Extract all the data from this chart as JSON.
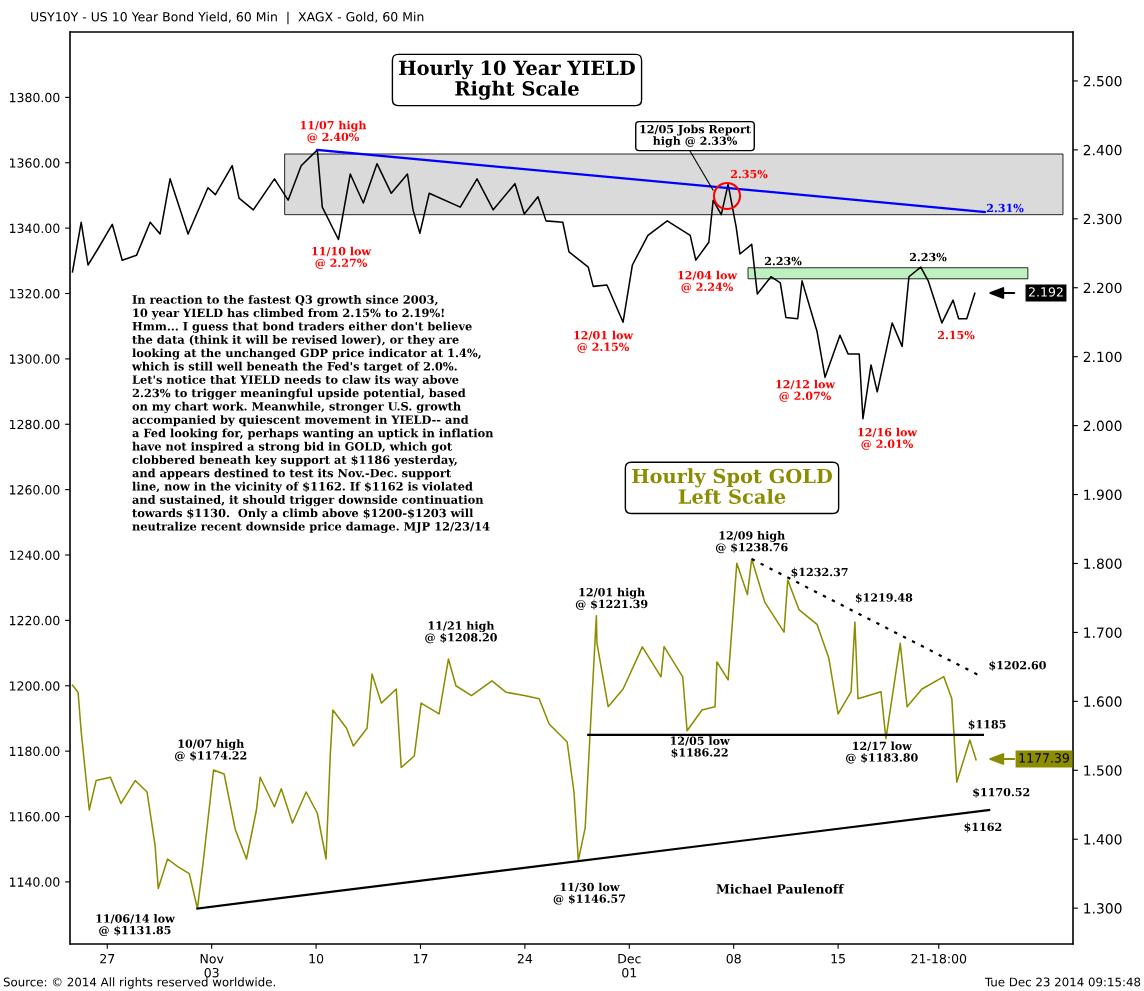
{
  "chart_data": {
    "type": "line",
    "title": "USY10Y - US 10 Year Bond Yield, 60 Min  |  XAGX - Gold, 60 Min",
    "xlim": [
      "2014-10-24T12:00",
      "2014-12-30T18:00"
    ],
    "xticks": [
      {
        "value": "2014-10-27",
        "label": "27"
      },
      {
        "value": "2014-11-03",
        "label": "Nov\n03"
      },
      {
        "value": "2014-11-10",
        "label": "10"
      },
      {
        "value": "2014-11-17",
        "label": "17"
      },
      {
        "value": "2014-11-24",
        "label": "24"
      },
      {
        "value": "2014-12-01",
        "label": "Dec\n01"
      },
      {
        "value": "2014-12-08",
        "label": "08"
      },
      {
        "value": "2014-12-15",
        "label": "15"
      },
      {
        "value": "2014-12-21T18:00",
        "label": "21-18:00"
      }
    ],
    "ylim": [
      1121,
      1400
    ],
    "yticks": [
      {
        "value": 1140,
        "label": "1140.00"
      },
      {
        "value": 1160,
        "label": "1160.00"
      },
      {
        "value": 1180,
        "label": "1180.00"
      },
      {
        "value": 1200,
        "label": "1200.00"
      },
      {
        "value": 1220,
        "label": "1220.00"
      },
      {
        "value": 1240,
        "label": "1240.00"
      },
      {
        "value": 1260,
        "label": "1260.00"
      },
      {
        "value": 1280,
        "label": "1280.00"
      },
      {
        "value": 1300,
        "label": "1300.00"
      },
      {
        "value": 1320,
        "label": "1320.00"
      },
      {
        "value": 1340,
        "label": "1340.00"
      },
      {
        "value": 1360,
        "label": "1360.00"
      },
      {
        "value": 1380,
        "label": "1380.00"
      }
    ],
    "y2lim": [
      1.248,
      2.571
    ],
    "y2ticks": [
      {
        "value": 1.3,
        "label": "1.300"
      },
      {
        "value": 1.4,
        "label": "1.400"
      },
      {
        "value": 1.5,
        "label": "1.500"
      },
      {
        "value": 1.6,
        "label": "1.600"
      },
      {
        "value": 1.7,
        "label": "1.700"
      },
      {
        "value": 1.8,
        "label": "1.800"
      },
      {
        "value": 1.9,
        "label": "1.900"
      },
      {
        "value": 2.0,
        "label": "2.000"
      },
      {
        "value": 2.1,
        "label": "2.100"
      },
      {
        "value": 2.2,
        "label": "2.200"
      },
      {
        "value": 2.3,
        "label": "2.300"
      },
      {
        "value": 2.4,
        "label": "2.400"
      },
      {
        "value": 2.5,
        "label": "2.500"
      }
    ],
    "bands": [
      {
        "axis": "y2",
        "from": 2.306,
        "to": 2.394,
        "color": "#dadada"
      },
      {
        "axis": "y2",
        "from": 2.213,
        "to": 2.229,
        "color": "#bff0bf"
      }
    ],
    "series": [
      {
        "axis": "y2",
        "color": "#000000",
        "x": [
          "2014-10-24T16:00",
          "2014-10-25T06:00",
          "2014-10-25T17:00",
          "2014-10-26T10:00",
          "2014-10-27T08:00",
          "2014-10-28T00:00",
          "2014-10-28T23:00",
          "2014-10-29T21:00",
          "2014-10-30T13:00",
          "2014-10-31T05:00",
          "2014-11-01T10:00",
          "2014-11-02T18:00",
          "2014-11-03T06:00",
          "2014-11-04T09:00",
          "2014-11-04T20:00",
          "2014-11-05T19:00",
          "2014-11-07T05:00",
          "2014-11-08T03:00",
          "2014-11-09T00:00",
          "2014-11-10T02:00",
          "2014-11-10T10:00",
          "2014-11-11T12:00",
          "2014-11-12T07:00",
          "2014-11-13T04:00",
          "2014-11-14T02:00",
          "2014-11-15T01:00",
          "2014-11-16T03:00",
          "2014-11-16T12:00",
          "2014-11-16T23:00",
          "2014-11-17T14:00",
          "2014-11-19T16:00",
          "2014-11-20T19:00",
          "2014-11-21T21:00",
          "2014-11-23T08:00",
          "2014-11-23T23:00",
          "2014-11-24T21:00",
          "2014-11-25T10:00",
          "2014-11-26T13:00",
          "2014-11-26T23:00",
          "2014-11-28T06:00",
          "2014-11-28T14:00",
          "2014-11-29T12:00",
          "2014-11-30T14:00",
          "2014-12-01T05:00",
          "2014-12-02T06:00",
          "2014-12-03T13:00",
          "2014-12-05T02:00",
          "2014-12-05T11:00",
          "2014-12-06T08:00",
          "2014-12-06T15:00",
          "2014-12-07T04:00",
          "2014-12-07T15:00",
          "2014-12-08T04:00",
          "2014-12-08T10:00",
          "2014-12-09T05:00",
          "2014-12-09T14:00",
          "2014-12-10T12:00",
          "2014-12-11T03:00",
          "2014-12-11T12:00",
          "2014-12-12T07:00",
          "2014-12-12T14:00",
          "2014-12-13T14:00",
          "2014-12-14T03:00",
          "2014-12-15T03:00",
          "2014-12-15T16:00",
          "2014-12-16T10:00",
          "2014-12-16T16:00",
          "2014-12-17T05:00",
          "2014-12-17T15:00",
          "2014-12-18T15:00",
          "2014-12-19T07:00",
          "2014-12-19T18:00",
          "2014-12-20T13:00",
          "2014-12-21T01:00",
          "2014-12-21T23:00",
          "2014-12-22T17:00",
          "2014-12-23T02:00",
          "2014-12-23T15:00",
          "2014-12-24T04:00"
        ],
        "values": [
          2.223,
          2.295,
          2.233,
          2.258,
          2.292,
          2.24,
          2.247,
          2.295,
          2.278,
          2.358,
          2.278,
          2.345,
          2.335,
          2.377,
          2.33,
          2.313,
          2.358,
          2.327,
          2.377,
          2.4,
          2.317,
          2.27,
          2.365,
          2.323,
          2.38,
          2.337,
          2.365,
          2.313,
          2.279,
          2.337,
          2.317,
          2.358,
          2.313,
          2.351,
          2.307,
          2.332,
          2.297,
          2.295,
          2.252,
          2.23,
          2.202,
          2.204,
          2.15,
          2.233,
          2.276,
          2.297,
          2.276,
          2.24,
          2.266,
          2.327,
          2.306,
          2.35,
          2.288,
          2.249,
          2.263,
          2.191,
          2.216,
          2.207,
          2.157,
          2.155,
          2.21,
          2.137,
          2.07,
          2.131,
          2.104,
          2.104,
          2.01,
          2.088,
          2.049,
          2.149,
          2.115,
          2.216,
          2.23,
          2.21,
          2.149,
          2.182,
          2.155,
          2.155,
          2.192
        ]
      },
      {
        "axis": "y",
        "color": "#8c8c00",
        "x": [
          "2014-10-24T16:00",
          "2014-10-25T01:00",
          "2014-10-25T06:00",
          "2014-10-25T13:00",
          "2014-10-25T19:00",
          "2014-10-26T06:00",
          "2014-10-27T05:00",
          "2014-10-27T22:00",
          "2014-10-28T21:00",
          "2014-10-29T16:00",
          "2014-10-30T05:00",
          "2014-10-30T10:00",
          "2014-10-31T01:00",
          "2014-10-31T18:00",
          "2014-11-01T12:00",
          "2014-11-02T01:00",
          "2014-11-02T10:00",
          "2014-11-03T03:00",
          "2014-11-03T20:00",
          "2014-11-04T14:00",
          "2014-11-05T08:00",
          "2014-11-06T00:00",
          "2014-11-06T06:00",
          "2014-11-07T05:00",
          "2014-11-07T16:00",
          "2014-11-08T10:00",
          "2014-11-09T08:00",
          "2014-11-10T02:00",
          "2014-11-10T16:00",
          "2014-11-10T23:00",
          "2014-11-11T03:00",
          "2014-11-12T01:00",
          "2014-11-12T12:00",
          "2014-11-13T10:00",
          "2014-11-13T18:00",
          "2014-11-14T09:00",
          "2014-11-15T09:00",
          "2014-11-15T17:00",
          "2014-11-16T14:00",
          "2014-11-17T01:00",
          "2014-11-18T06:00",
          "2014-11-18T21:00",
          "2014-11-19T09:00",
          "2014-11-20T10:00",
          "2014-11-21T19:00",
          "2014-11-22T18:00",
          "2014-11-23T23:00",
          "2014-11-24T23:00",
          "2014-11-25T15:00",
          "2014-11-26T20:00",
          "2014-11-27T07:00",
          "2014-11-27T14:00",
          "2014-11-28T01:00",
          "2014-11-28T07:00",
          "2014-11-28T19:00",
          "2014-11-28T20:00",
          "2014-11-29T14:00",
          "2014-11-30T14:00",
          "2014-12-01T21:00",
          "2014-12-03T03:00",
          "2014-12-03T08:00",
          "2014-12-04T14:00",
          "2014-12-04T21:00",
          "2014-12-05T21:00",
          "2014-12-06T18:00",
          "2014-12-06T21:00",
          "2014-12-07T15:00",
          "2014-12-08T05:00",
          "2014-12-08T22:00",
          "2014-12-09T05:00",
          "2014-12-10T02:00",
          "2014-12-11T09:00",
          "2014-12-11T15:00",
          "2014-12-12T09:00",
          "2014-12-13T14:00",
          "2014-12-14T09:00",
          "2014-12-15T00:00",
          "2014-12-15T21:00",
          "2014-12-16T03:00",
          "2014-12-16T08:00",
          "2014-12-17T21:00",
          "2014-12-18T05:00",
          "2014-12-19T04:00",
          "2014-12-19T15:00",
          "2014-12-20T15:00",
          "2014-12-22T02:00",
          "2014-12-22T15:00",
          "2014-12-22T23:00",
          "2014-12-23T20:00",
          "2014-12-24T06:00"
        ],
        "values": [
          1200.2,
          1198,
          1186,
          1173,
          1162,
          1171,
          1172,
          1164,
          1171,
          1167.5,
          1151,
          1138,
          1147,
          1144.6,
          1142.5,
          1131.85,
          1145.5,
          1174.22,
          1173,
          1156,
          1147,
          1162,
          1172,
          1163,
          1168.5,
          1158,
          1167.5,
          1161,
          1147,
          1179.5,
          1192.6,
          1187,
          1181.6,
          1187,
          1203.6,
          1194.7,
          1199,
          1175,
          1178.5,
          1194.7,
          1191.4,
          1208.2,
          1200,
          1197,
          1201.5,
          1198,
          1197,
          1196,
          1188.3,
          1182.8,
          1167.5,
          1146.57,
          1156.5,
          1178.5,
          1221.39,
          1213,
          1193.6,
          1199,
          1211.9,
          1202.7,
          1212,
          1202.7,
          1186.22,
          1192.6,
          1193.6,
          1207.3,
          1201.8,
          1237.5,
          1227.9,
          1238.76,
          1225.6,
          1216.4,
          1232.37,
          1223.3,
          1218.8,
          1208.5,
          1191.4,
          1198.2,
          1219.48,
          1196,
          1198.2,
          1183.8,
          1213,
          1193.6,
          1199,
          1202.8,
          1196,
          1170.52,
          1183.4,
          1177.39
        ]
      },
      {
        "axis": "y2",
        "color": "#0000ff",
        "x": [
          "2014-11-10T02:00",
          "2014-12-24T20:00"
        ],
        "values": [
          2.4,
          2.31
        ]
      },
      {
        "axis": "y",
        "color": "#000000",
        "x": [
          "2014-11-28T06:00",
          "2014-12-24T17:00"
        ],
        "values": [
          1185,
          1185
        ]
      },
      {
        "axis": "y",
        "color": "#000000",
        "x": [
          "2014-11-02T01:00",
          "2014-12-25T03:00"
        ],
        "values": [
          1131.85,
          1162
        ]
      },
      {
        "axis": "y",
        "color": "#000000",
        "x": [
          "2014-12-09T05:00",
          "2014-12-24T17:00"
        ],
        "values": [
          1238.76,
          1202.6
        ],
        "line_style": "dotted"
      }
    ],
    "annotations": [
      "Hourly 10 Year YIELD\nRight Scale",
      "11/07 high\n@ 2.40%",
      "11/10 low\n@ 2.27%",
      "12/05 Jobs Report\nhigh @ 2.33%",
      "2.35%",
      "12/01 low\n@ 2.15%",
      "12/04 low\n@ 2.24%",
      "2.23%",
      "2.23%",
      "2.31%",
      "12/12 low\n@ 2.07%",
      "12/16 low\n@ 2.01%",
      "2.15%",
      "In reaction to the fastest Q3 growth since 2003,\n10 year YIELD has climbed from 2.15% to 2.19%!\nHmm... I guess that bond traders either don't believe\nthe data (think it will be revised lower), or they are\nlooking at the unchanged GDP price indicator at 1.4%,\nwhich is still well beneath the Fed's target of 2.0%.\nLet's notice that YIELD needs to claw its way above\n2.23% to trigger meaningful upside potential, based\non my chart work. Meanwhile, stronger U.S. growth\naccompanied by quiescent movement in YIELD-- and\na Fed looking for, perhaps wanting an uptick in inflation\nhave not inspired a strong bid in GOLD, which got\nclobbered beneath key support at $1186 yesterday,\nand appears destined to test its Nov.-Dec. support\nline, now in the vicinity of $1162. If $1162 is violated\nand sustained, it should trigger downside continuation\ntowards $1130.  Only a climb above $1200-$1203 will\nneutralize recent downside price damage. MJP 12/23/14",
      "Hourly Spot GOLD\nLeft Scale",
      {
        "text": "12/09 high\n@ $1238.76",
        "x": "2014-12-09T05:00",
        "y": 1238.76
      },
      {
        "text": "$1232.37",
        "x": "2014-12-11T15:00",
        "y": 1232.37
      },
      {
        "text": "$1219.48",
        "x": "2014-12-16T03:00",
        "y": 1219.48
      },
      {
        "text": "$1202.60",
        "x": "2014-12-24T17:00",
        "y": 1202.6
      },
      {
        "text": "12/01 high\n@ $1221.39",
        "x": "2014-11-28T19:00",
        "y": 1221.39
      },
      {
        "text": "11/21 high\n@ $1208.20",
        "x": "2014-11-18T21:00",
        "y": 1208.2
      },
      {
        "text": "10/07 high\n@ $1174.22",
        "x": "2014-11-03T03:00",
        "y": 1174.22
      },
      {
        "text": "11/06/14 low\n@ $1131.85",
        "x": "2014-11-02T01:00",
        "y": 1131.85
      },
      {
        "text": "11/30 low\n@ $1146.57",
        "x": "2014-11-27T14:00",
        "y": 1146.57
      },
      {
        "text": "12/05 low\n$1186.22",
        "x": "2014-12-04T21:00",
        "y": 1186.22
      },
      {
        "text": "12/17 low\n@ $1183.80",
        "x": "2014-12-18T05:00",
        "y": 1183.8
      },
      {
        "text": "$1185",
        "x": "2014-12-24T17:00",
        "y": 1185
      },
      {
        "text": "$1170.52",
        "x": "2014-12-22T23:00",
        "y": 1170.52
      },
      {
        "text": "$1162",
        "x": "2014-12-24T17:00",
        "y": 1162
      },
      "Michael Paulenoff",
      "Source: © 2014 All rights reserved worldwide.",
      "Tue Dec 23 2014 09:15:48",
      "2.192",
      "1177.39"
    ]
  }
}
